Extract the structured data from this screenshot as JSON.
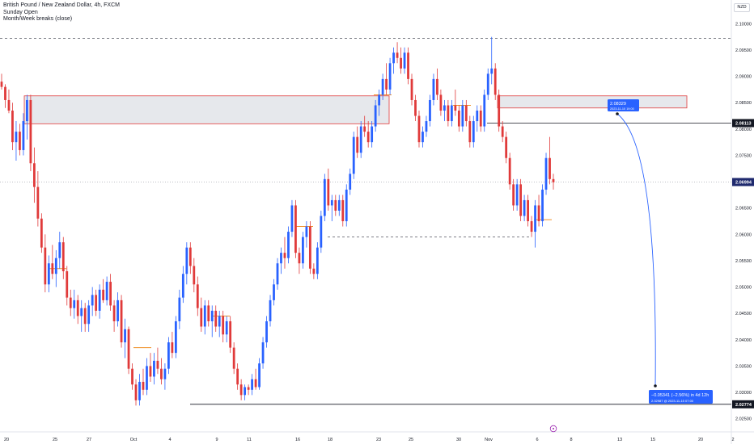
{
  "legend": {
    "symbol_line": "British Pound / New Zealand Dollar, 4h, FXCM",
    "indicator_1": "Sunday Open",
    "indicator_2": "Month/Week breaks (close)"
  },
  "currency_label": "NZD",
  "colors": {
    "up": "#2962ff",
    "down": "#e03a3a",
    "zone_fill": "#e6e8ec",
    "zone_border": "#e03a3a",
    "callout": "#2962ff",
    "open_line": "#f0902a"
  },
  "chart_data": {
    "type": "candlestick",
    "ylim": [
      2.0225,
      2.1045
    ],
    "y_ticks": [
      "2.10000",
      "2.09500",
      "2.09000",
      "2.08500",
      "2.08000",
      "2.07500",
      "2.07000",
      "2.06500",
      "2.06000",
      "2.05500",
      "2.05000",
      "2.04500",
      "2.04000",
      "2.03500",
      "2.03000",
      "2.02500"
    ],
    "x_ticks": [
      "20",
      "25",
      "27",
      "Oct",
      "4",
      "9",
      "11",
      "16",
      "18",
      "23",
      "25",
      "30",
      "Nov",
      "6",
      "8",
      "13",
      "15",
      "20",
      "2"
    ],
    "price_labels": [
      {
        "value": "2.08113",
        "price": 2.08113,
        "style": "dark"
      },
      {
        "value": "2.06994",
        "price": 2.06994,
        "style": "navy"
      },
      {
        "value": "2.02774",
        "price": 2.02774,
        "style": "dark"
      }
    ],
    "levels": [
      {
        "name": "top-dashed",
        "price": 2.0972,
        "style": "dashed"
      },
      {
        "name": "dashed-support",
        "price": 2.0595,
        "style": "dashed"
      },
      {
        "name": "low-line",
        "price": 2.02774,
        "style": "solid"
      },
      {
        "name": "resistance-line",
        "price": 2.08113,
        "style": "solid"
      },
      {
        "name": "current-price",
        "price": 2.06994,
        "style": "dotted"
      }
    ],
    "zones": [
      {
        "name": "left-supply",
        "top": 2.0863,
        "bottom": 2.081
      },
      {
        "name": "right-supply",
        "top": 2.0863,
        "bottom": 2.084
      }
    ],
    "callout_top": {
      "line1": "2.08329",
      "line2": "2023-11-10 19:00"
    },
    "callout_bottom": {
      "line1": "−0.05341 (−2.56%) in 4d 12h",
      "line2": "2.02987 @ 2023-11-15  07:00"
    },
    "candles": [
      [
        2.089,
        2.0905,
        2.0875,
        2.088
      ],
      [
        2.088,
        2.0885,
        2.084,
        2.0855
      ],
      [
        2.0855,
        2.0875,
        2.083,
        2.0835
      ],
      [
        2.0835,
        2.085,
        2.076,
        2.0775
      ],
      [
        2.0775,
        2.0815,
        2.074,
        2.0795
      ],
      [
        2.0795,
        2.081,
        2.075,
        2.076
      ],
      [
        2.076,
        2.083,
        2.075,
        2.0815
      ],
      [
        2.0815,
        2.0865,
        2.078,
        2.0855
      ],
      [
        2.0855,
        2.0865,
        2.072,
        2.0735
      ],
      [
        2.0735,
        2.0765,
        2.066,
        2.069
      ],
      [
        2.069,
        2.072,
        2.0615,
        2.063
      ],
      [
        2.063,
        2.064,
        2.0565,
        2.0575
      ],
      [
        2.0575,
        2.06,
        2.049,
        2.0505
      ],
      [
        2.0505,
        2.056,
        2.049,
        2.0545
      ],
      [
        2.0545,
        2.058,
        2.0515,
        2.0525
      ],
      [
        2.0525,
        2.057,
        2.05,
        2.0555
      ],
      [
        2.0555,
        2.0605,
        2.0535,
        2.0585
      ],
      [
        2.0585,
        2.0595,
        2.0515,
        2.053
      ],
      [
        2.053,
        2.054,
        2.0465,
        2.048
      ],
      [
        2.048,
        2.0495,
        2.0445,
        2.046
      ],
      [
        2.046,
        2.0495,
        2.044,
        2.0475
      ],
      [
        2.0475,
        2.0485,
        2.043,
        2.0445
      ],
      [
        2.0445,
        2.0475,
        2.0415,
        2.046
      ],
      [
        2.046,
        2.047,
        2.0415,
        2.043
      ],
      [
        2.043,
        2.0475,
        2.0415,
        2.0465
      ],
      [
        2.0465,
        2.05,
        2.0445,
        2.0485
      ],
      [
        2.0485,
        2.0495,
        2.0445,
        2.0455
      ],
      [
        2.0455,
        2.0505,
        2.044,
        2.0495
      ],
      [
        2.0495,
        2.0515,
        2.047,
        2.0475
      ],
      [
        2.0475,
        2.052,
        2.0465,
        2.051
      ],
      [
        2.051,
        2.0525,
        2.0455,
        2.0465
      ],
      [
        2.0465,
        2.0475,
        2.0415,
        2.0435
      ],
      [
        2.0435,
        2.049,
        2.0425,
        2.0475
      ],
      [
        2.0475,
        2.0485,
        2.0385,
        2.0395
      ],
      [
        2.0395,
        2.044,
        2.0365,
        2.042
      ],
      [
        2.042,
        2.0425,
        2.0335,
        2.0345
      ],
      [
        2.0345,
        2.0355,
        2.0305,
        2.0315
      ],
      [
        2.0315,
        2.0325,
        2.0275,
        2.0285
      ],
      [
        2.0285,
        2.0335,
        2.0275,
        2.032
      ],
      [
        2.032,
        2.0345,
        2.0295,
        2.0305
      ],
      [
        2.0305,
        2.0365,
        2.0295,
        2.035
      ],
      [
        2.035,
        2.0375,
        2.032,
        2.033
      ],
      [
        2.033,
        2.0375,
        2.0315,
        2.036
      ],
      [
        2.036,
        2.0385,
        2.0335,
        2.0345
      ],
      [
        2.0345,
        2.0365,
        2.0315,
        2.0325
      ],
      [
        2.0325,
        2.0355,
        2.0305,
        2.0345
      ],
      [
        2.0345,
        2.0405,
        2.0335,
        2.0395
      ],
      [
        2.0395,
        2.0415,
        2.0365,
        2.0375
      ],
      [
        2.0375,
        2.0445,
        2.0365,
        2.0435
      ],
      [
        2.0435,
        2.0495,
        2.042,
        2.048
      ],
      [
        2.048,
        2.054,
        2.047,
        2.0525
      ],
      [
        2.0525,
        2.0585,
        2.0505,
        2.0575
      ],
      [
        2.0575,
        2.0585,
        2.0525,
        2.054
      ],
      [
        2.054,
        2.0555,
        2.049,
        2.0505
      ],
      [
        2.0505,
        2.052,
        2.0445,
        2.046
      ],
      [
        2.046,
        2.048,
        2.0415,
        2.0425
      ],
      [
        2.0425,
        2.0475,
        2.041,
        2.0465
      ],
      [
        2.0465,
        2.0475,
        2.0425,
        2.0435
      ],
      [
        2.0435,
        2.0465,
        2.0405,
        2.0455
      ],
      [
        2.0455,
        2.0465,
        2.0415,
        2.0425
      ],
      [
        2.0425,
        2.0455,
        2.0405,
        2.0445
      ],
      [
        2.0445,
        2.0455,
        2.0395,
        2.041
      ],
      [
        2.041,
        2.0445,
        2.0395,
        2.0435
      ],
      [
        2.0435,
        2.0445,
        2.0375,
        2.0385
      ],
      [
        2.0385,
        2.0395,
        2.0335,
        2.0345
      ],
      [
        2.0345,
        2.0355,
        2.0305,
        2.0315
      ],
      [
        2.0315,
        2.0325,
        2.0285,
        2.0295
      ],
      [
        2.0295,
        2.0315,
        2.0285,
        2.031
      ],
      [
        2.031,
        2.0315,
        2.0295,
        2.0305
      ],
      [
        2.0305,
        2.0335,
        2.0295,
        2.0325
      ],
      [
        2.0325,
        2.0345,
        2.0305,
        2.031
      ],
      [
        2.031,
        2.0365,
        2.0305,
        2.0355
      ],
      [
        2.0355,
        2.0405,
        2.0345,
        2.0395
      ],
      [
        2.0395,
        2.0445,
        2.0385,
        2.0435
      ],
      [
        2.0435,
        2.0485,
        2.0425,
        2.0475
      ],
      [
        2.0475,
        2.0515,
        2.0465,
        2.0505
      ],
      [
        2.0505,
        2.0555,
        2.0495,
        2.0545
      ],
      [
        2.0545,
        2.0575,
        2.0525,
        2.0565
      ],
      [
        2.0565,
        2.0595,
        2.0535,
        2.0555
      ],
      [
        2.0555,
        2.0615,
        2.0545,
        2.0605
      ],
      [
        2.0605,
        2.0665,
        2.0595,
        2.0655
      ],
      [
        2.0655,
        2.0665,
        2.0555,
        2.0565
      ],
      [
        2.0565,
        2.0575,
        2.0525,
        2.0545
      ],
      [
        2.0545,
        2.0605,
        2.0535,
        2.0595
      ],
      [
        2.0595,
        2.0625,
        2.0575,
        2.0615
      ],
      [
        2.0615,
        2.0625,
        2.0525,
        2.0535
      ],
      [
        2.0535,
        2.0545,
        2.0515,
        2.0525
      ],
      [
        2.0525,
        2.0585,
        2.0515,
        2.0575
      ],
      [
        2.0575,
        2.0645,
        2.0565,
        2.0635
      ],
      [
        2.0635,
        2.0715,
        2.0625,
        2.0705
      ],
      [
        2.0705,
        2.0725,
        2.0645,
        2.0655
      ],
      [
        2.0655,
        2.0675,
        2.0625,
        2.0665
      ],
      [
        2.0665,
        2.0675,
        2.0635,
        2.0645
      ],
      [
        2.0645,
        2.0675,
        2.0635,
        2.0665
      ],
      [
        2.0665,
        2.0675,
        2.0615,
        2.0625
      ],
      [
        2.0625,
        2.0695,
        2.0615,
        2.0685
      ],
      [
        2.0685,
        2.0725,
        2.0675,
        2.0715
      ],
      [
        2.0715,
        2.0795,
        2.0705,
        2.0785
      ],
      [
        2.0785,
        2.0805,
        2.0745,
        2.0755
      ],
      [
        2.0755,
        2.0815,
        2.0745,
        2.0805
      ],
      [
        2.0805,
        2.0825,
        2.0785,
        2.0795
      ],
      [
        2.0795,
        2.0815,
        2.0765,
        2.0775
      ],
      [
        2.0775,
        2.0815,
        2.0765,
        2.0805
      ],
      [
        2.0805,
        2.0855,
        2.0795,
        2.0845
      ],
      [
        2.0845,
        2.0875,
        2.0825,
        2.0865
      ],
      [
        2.0865,
        2.0905,
        2.0855,
        2.0895
      ],
      [
        2.0895,
        2.0925,
        2.0865,
        2.0875
      ],
      [
        2.0875,
        2.0935,
        2.0865,
        2.0925
      ],
      [
        2.0925,
        2.0955,
        2.0905,
        2.0945
      ],
      [
        2.0945,
        2.0965,
        2.0925,
        2.0935
      ],
      [
        2.0935,
        2.0955,
        2.0905,
        2.0915
      ],
      [
        2.0915,
        2.0955,
        2.0905,
        2.0945
      ],
      [
        2.0945,
        2.0955,
        2.0885,
        2.0895
      ],
      [
        2.0895,
        2.0905,
        2.0845,
        2.0855
      ],
      [
        2.0855,
        2.0865,
        2.0815,
        2.0825
      ],
      [
        2.0825,
        2.0835,
        2.0765,
        2.0775
      ],
      [
        2.0775,
        2.0805,
        2.0765,
        2.0795
      ],
      [
        2.0795,
        2.0825,
        2.0785,
        2.0815
      ],
      [
        2.0815,
        2.0865,
        2.0805,
        2.0855
      ],
      [
        2.0855,
        2.0905,
        2.0845,
        2.0895
      ],
      [
        2.0895,
        2.0915,
        2.0855,
        2.0865
      ],
      [
        2.0865,
        2.0875,
        2.0825,
        2.0835
      ],
      [
        2.0835,
        2.0855,
        2.0815,
        2.0845
      ],
      [
        2.0845,
        2.0855,
        2.0805,
        2.0815
      ],
      [
        2.0815,
        2.0855,
        2.0805,
        2.0845
      ],
      [
        2.0845,
        2.0875,
        2.0825,
        2.0835
      ],
      [
        2.0835,
        2.0845,
        2.0795,
        2.0805
      ],
      [
        2.0805,
        2.0855,
        2.0795,
        2.0845
      ],
      [
        2.0845,
        2.0855,
        2.0805,
        2.0815
      ],
      [
        2.0815,
        2.0825,
        2.0765,
        2.0775
      ],
      [
        2.0775,
        2.0825,
        2.0765,
        2.0815
      ],
      [
        2.0815,
        2.0845,
        2.0795,
        2.0835
      ],
      [
        2.0835,
        2.0845,
        2.0795,
        2.0805
      ],
      [
        2.0805,
        2.0875,
        2.0795,
        2.0865
      ],
      [
        2.0865,
        2.0915,
        2.0855,
        2.0905
      ],
      [
        2.0905,
        2.0975,
        2.0885,
        2.0915
      ],
      [
        2.0915,
        2.0925,
        2.0855,
        2.0865
      ],
      [
        2.0865,
        2.0875,
        2.0795,
        2.0805
      ],
      [
        2.0805,
        2.0815,
        2.0775,
        2.0785
      ],
      [
        2.0785,
        2.0795,
        2.0735,
        2.0745
      ],
      [
        2.0745,
        2.0755,
        2.0685,
        2.0695
      ],
      [
        2.0695,
        2.0705,
        2.0645,
        2.0655
      ],
      [
        2.0655,
        2.0705,
        2.0645,
        2.0695
      ],
      [
        2.0695,
        2.0705,
        2.0625,
        2.0635
      ],
      [
        2.0635,
        2.0675,
        2.0625,
        2.0665
      ],
      [
        2.0665,
        2.0675,
        2.0615,
        2.0625
      ],
      [
        2.0625,
        2.0635,
        2.0595,
        2.0605
      ],
      [
        2.0605,
        2.0665,
        2.0575,
        2.0655
      ],
      [
        2.0655,
        2.0675,
        2.0615,
        2.0625
      ],
      [
        2.0625,
        2.0695,
        2.0615,
        2.0685
      ],
      [
        2.0685,
        2.0755,
        2.0675,
        2.0745
      ],
      [
        2.0745,
        2.0785,
        2.0695,
        2.0705
      ],
      [
        2.0705,
        2.0715,
        2.0685,
        2.0699
      ]
    ]
  }
}
